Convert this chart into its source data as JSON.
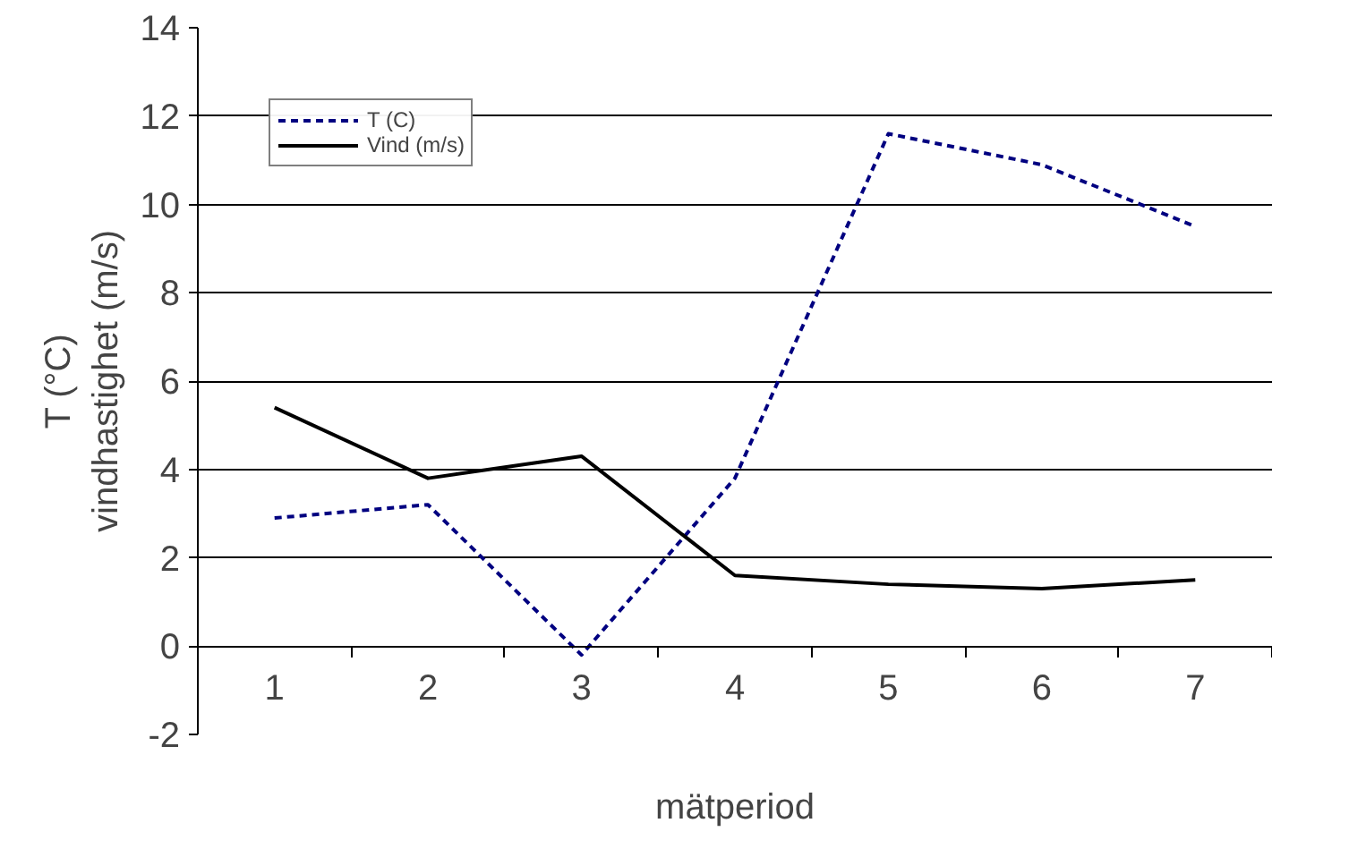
{
  "chart_data": {
    "type": "line",
    "categories": [
      "1",
      "2",
      "3",
      "4",
      "5",
      "6",
      "7"
    ],
    "series": [
      {
        "name": "T (C)",
        "color": "#000080",
        "line_style": "dashed",
        "values": [
          2.9,
          3.2,
          -0.2,
          3.8,
          11.6,
          10.9,
          9.5
        ]
      },
      {
        "name": "Vind (m/s)",
        "color": "#000000",
        "line_style": "solid",
        "values": [
          5.4,
          3.8,
          4.3,
          1.6,
          1.4,
          1.3,
          1.5
        ]
      }
    ],
    "xlabel": "mätperiod",
    "ylabel": "T (°C)\nvindhastighet (m/s)",
    "ylim": [
      -2,
      14
    ],
    "yticks": [
      -2,
      0,
      2,
      4,
      6,
      8,
      10,
      12,
      14
    ],
    "grid": "y",
    "legend": "top left",
    "marker": "none"
  }
}
